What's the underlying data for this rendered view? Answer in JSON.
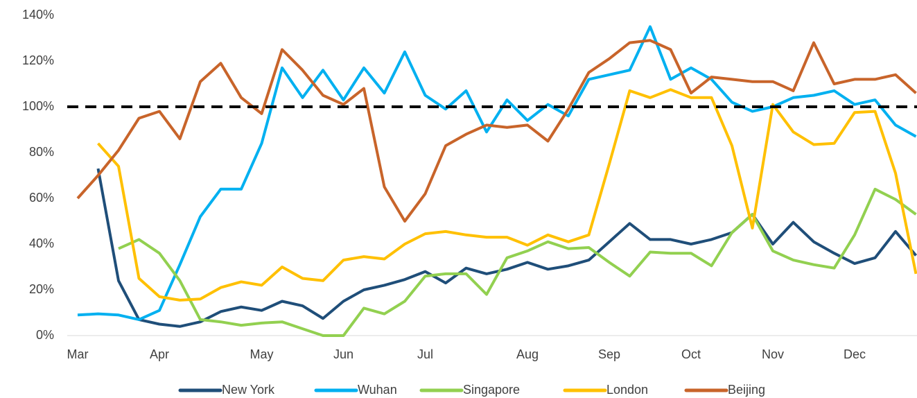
{
  "chart_data": {
    "type": "line",
    "categories": [
      "Mar",
      null,
      null,
      null,
      "Apr",
      null,
      null,
      null,
      null,
      "May",
      null,
      null,
      null,
      "Jun",
      null,
      null,
      null,
      "Jul",
      null,
      null,
      null,
      null,
      "Aug",
      null,
      null,
      null,
      "Sep",
      null,
      null,
      null,
      "Oct",
      null,
      null,
      null,
      "Nov",
      null,
      null,
      null,
      "Dec",
      null,
      null,
      null
    ],
    "series": [
      {
        "name": "New York",
        "color": "#1f4e79",
        "values": [
          null,
          73,
          24,
          7,
          5,
          4,
          6,
          10.5,
          12.5,
          11,
          15,
          13,
          7.5,
          15,
          20,
          22,
          24.5,
          28,
          23,
          29.5,
          27,
          29,
          32,
          29,
          30.5,
          33,
          41,
          49,
          42,
          42,
          40,
          42,
          45,
          53,
          40,
          49.5,
          41,
          36,
          31.5,
          34,
          45.5,
          35
        ]
      },
      {
        "name": "Wuhan",
        "color": "#00b0f0",
        "values": [
          9,
          9.5,
          9,
          7,
          11,
          31,
          52,
          64,
          64,
          84,
          117,
          104,
          116,
          103,
          117,
          106,
          124,
          105,
          99,
          107,
          89,
          103,
          94,
          101,
          96,
          112,
          114,
          116,
          135,
          112,
          117,
          112,
          102,
          98,
          100,
          104,
          105,
          107,
          101,
          103,
          92,
          87
        ]
      },
      {
        "name": "Singapore",
        "color": "#92d050",
        "values": [
          null,
          null,
          38,
          42,
          36,
          24,
          7,
          6,
          4.5,
          5.5,
          6,
          3,
          0,
          0,
          12,
          9.5,
          15,
          26,
          27,
          27,
          18,
          34,
          37,
          41,
          38,
          38.5,
          32,
          26,
          36.5,
          36,
          36,
          30.5,
          45,
          53,
          37,
          33,
          31,
          29.5,
          44,
          64,
          59.5,
          53
        ]
      },
      {
        "name": "London",
        "color": "#ffc000",
        "values": [
          null,
          84,
          74,
          25,
          17,
          15.5,
          16,
          21,
          23.5,
          22,
          30,
          25,
          24,
          33,
          34.5,
          33.5,
          40,
          44.5,
          45.5,
          44,
          43,
          43,
          39.5,
          44,
          41,
          44,
          75,
          107,
          104,
          107.5,
          104,
          104,
          83,
          47,
          101,
          89,
          83.5,
          84,
          97.5,
          98,
          71,
          27
        ]
      },
      {
        "name": "Beijing",
        "color": "#c8642a",
        "values": [
          60,
          70,
          81,
          95,
          98,
          86,
          111,
          119,
          104,
          97,
          125,
          116,
          105,
          101,
          108,
          65,
          50,
          62,
          83,
          88,
          92,
          91,
          92,
          85,
          99,
          115,
          121,
          128,
          129,
          125,
          106,
          113,
          112,
          111,
          111,
          107,
          128,
          110,
          112,
          112,
          114,
          106
        ]
      }
    ],
    "reference_line": 100,
    "ylim": [
      0,
      140
    ],
    "yticks": [
      {
        "value": 0,
        "label": "0%"
      },
      {
        "value": 20,
        "label": "20%"
      },
      {
        "value": 40,
        "label": "40%"
      },
      {
        "value": 60,
        "label": "60%"
      },
      {
        "value": 80,
        "label": "80%"
      },
      {
        "value": 100,
        "label": "100%"
      },
      {
        "value": 120,
        "label": "120%"
      },
      {
        "value": 140,
        "label": "140%"
      }
    ],
    "legend": "bottom"
  }
}
